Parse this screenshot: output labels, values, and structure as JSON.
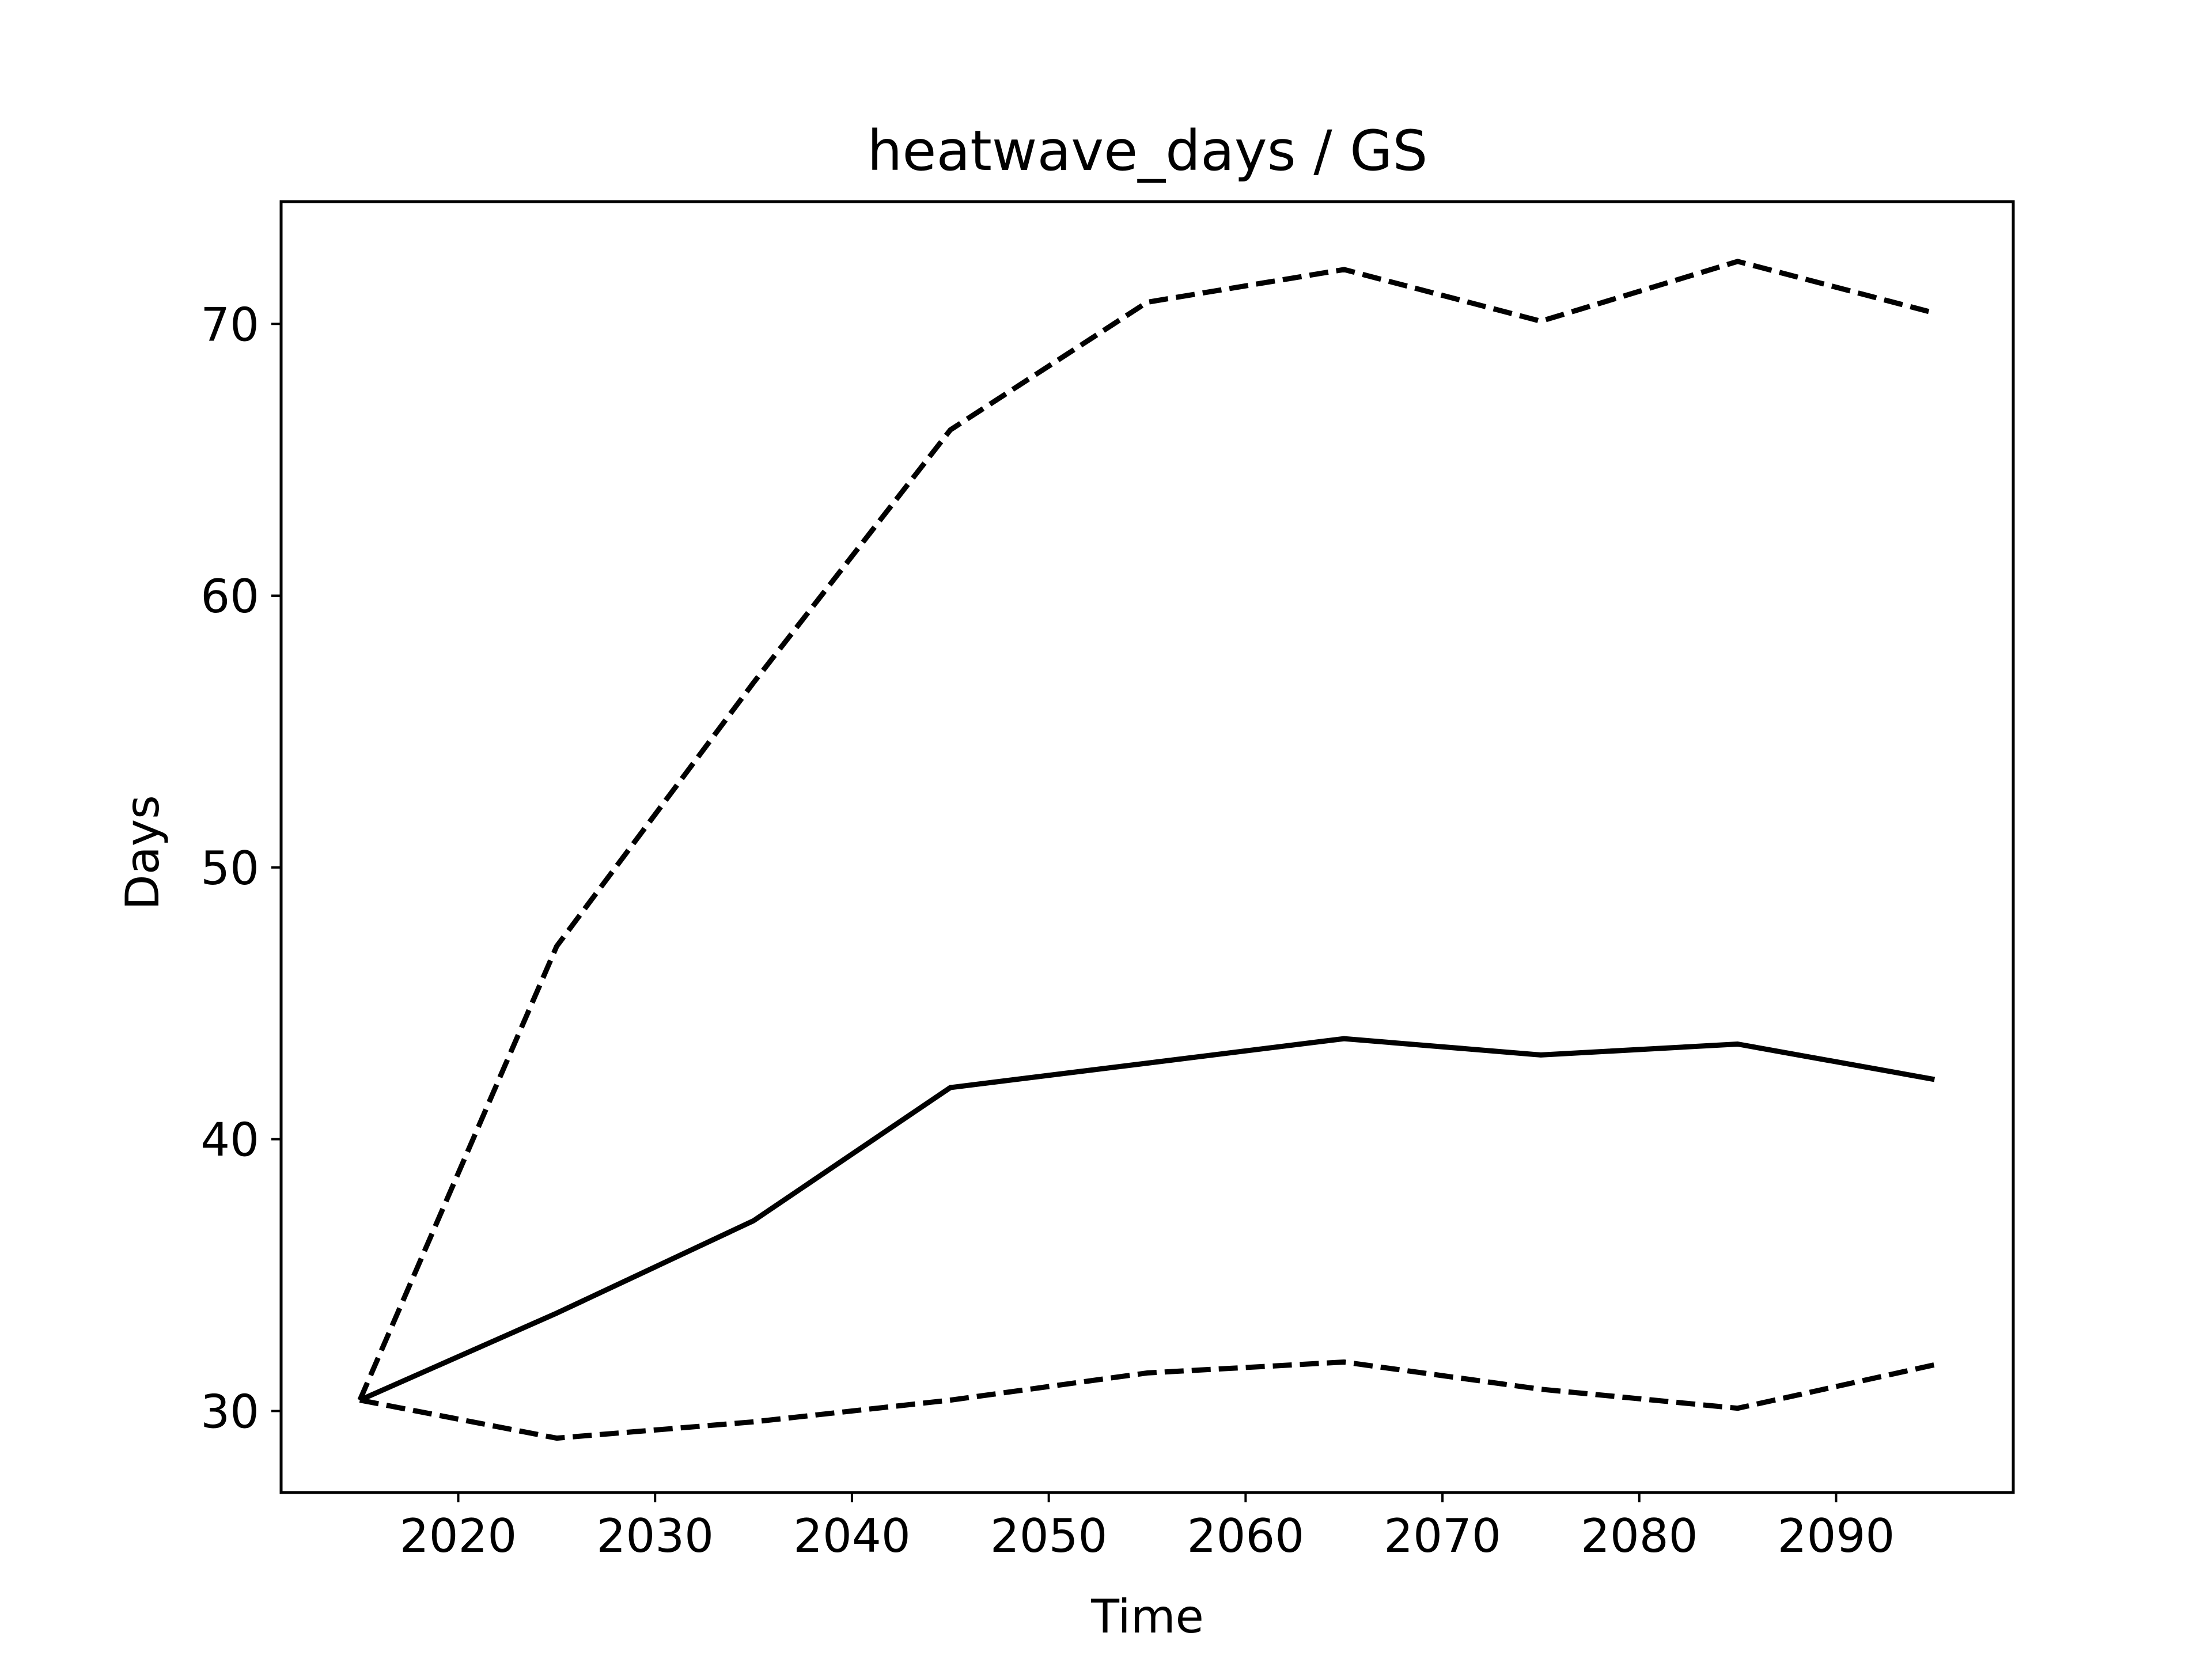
{
  "chart_data": {
    "type": "line",
    "title": "heatwave_days / GS",
    "xlabel": "Time",
    "ylabel": "Days",
    "xlim": [
      2011,
      2099
    ],
    "ylim": [
      27,
      74.5
    ],
    "xticks": [
      2020,
      2030,
      2040,
      2050,
      2060,
      2070,
      2080,
      2090
    ],
    "yticks": [
      30,
      40,
      50,
      60,
      70
    ],
    "grid": false,
    "legend": "none",
    "x": [
      2015,
      2025,
      2035,
      2045,
      2055,
      2065,
      2075,
      2085,
      2095
    ],
    "series": [
      {
        "style": "solid",
        "color": "#000000",
        "values": [
          30.4,
          33.6,
          37.0,
          41.9,
          42.8,
          43.7,
          43.1,
          43.5,
          42.2
        ]
      },
      {
        "style": "dashed",
        "color": "#000000",
        "values": [
          30.4,
          47.1,
          56.8,
          66.1,
          70.8,
          72.0,
          70.1,
          72.3,
          70.4
        ]
      },
      {
        "style": "dashed",
        "color": "#000000",
        "values": [
          30.4,
          29.0,
          29.6,
          30.4,
          31.4,
          31.8,
          30.8,
          30.1,
          31.7
        ]
      }
    ]
  }
}
